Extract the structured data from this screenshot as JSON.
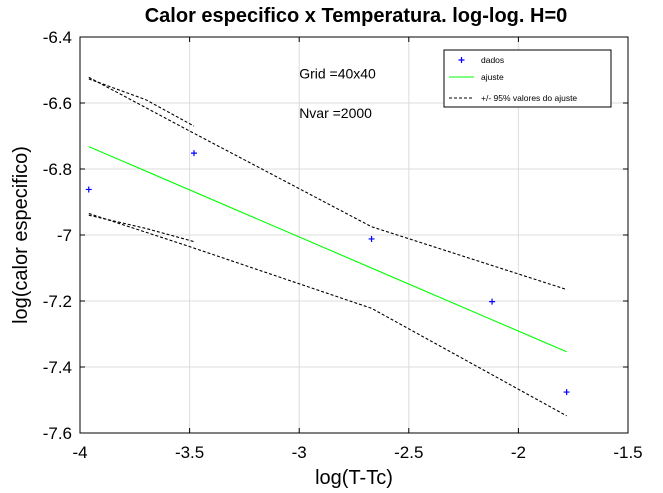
{
  "chart_data": {
    "type": "line",
    "title": "Calor especifico x Temperatura. log-log. H=0",
    "xlabel": "log(T-Tc)",
    "ylabel": "log(calor especifico)",
    "xlim": [
      -4,
      -1.5
    ],
    "ylim": [
      -7.6,
      -6.4
    ],
    "xticks": [
      -4,
      -3.5,
      -3,
      -2.5,
      -2,
      -1.5
    ],
    "yticks": [
      -6.4,
      -6.6,
      -6.8,
      -7,
      -7.2,
      -7.4,
      -7.6
    ],
    "xtick_labels": [
      "-4",
      "-3.5",
      "-3",
      "-2.5",
      "-2",
      "-1.5"
    ],
    "ytick_labels": [
      "-6.4",
      "-6.6",
      "-6.8",
      "-7",
      "-7.2",
      "-7.4",
      "-7.6"
    ],
    "grid": true,
    "legend_position": "top-right",
    "annotations": [
      {
        "text": "Grid =40x40",
        "x": -3,
        "y": -6.525
      },
      {
        "text": "Nvar =2000",
        "x": -3,
        "y": -6.645
      }
    ],
    "series": [
      {
        "name": "dados",
        "style": "marker-plus",
        "color": "#0000ff",
        "x": [
          -3.96,
          -3.48,
          -2.67,
          -2.12,
          -1.78
        ],
        "y": [
          -6.862,
          -6.752,
          -7.012,
          -7.202,
          -7.476
        ]
      },
      {
        "name": "ajuste",
        "style": "solid",
        "color": "#00ff00",
        "x": [
          -3.96,
          -1.78
        ],
        "y": [
          -6.732,
          -7.354
        ]
      },
      {
        "name": "+/- 95% valores do ajuste",
        "style": "dashed",
        "color": "#000000",
        "x": [
          -3.96,
          -3.5,
          -2.67,
          -1.78
        ],
        "y": [
          -6.522,
          -6.685,
          -6.975,
          -7.165
        ]
      },
      {
        "name": "",
        "style": "dashed",
        "color": "#000000",
        "x": [
          -3.96,
          -3.5,
          -2.67,
          -1.78
        ],
        "y": [
          -6.935,
          -7.035,
          -7.222,
          -7.548
        ]
      },
      {
        "name": "",
        "style": "dashed",
        "color": "#000000",
        "x": [
          -3.96,
          -3.7,
          -3.48
        ],
        "y": [
          -6.527,
          -6.59,
          -6.67
        ]
      },
      {
        "name": "",
        "style": "dashed",
        "color": "#000000",
        "x": [
          -3.96,
          -3.7,
          -3.48
        ],
        "y": [
          -6.94,
          -6.98,
          -7.02
        ]
      }
    ]
  }
}
